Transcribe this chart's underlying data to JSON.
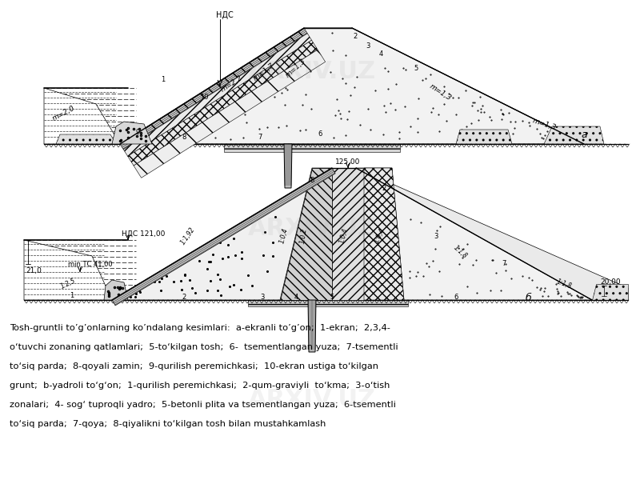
{
  "background_color": "#ffffff",
  "fig_width": 8.0,
  "fig_height": 6.0,
  "dpi": 100,
  "caption": [
    "Tosh-gruntli to’g’onlarning ko’ndalang kesimlari:  a-ekranli to’g’on;  1-ekran;  2,3,4-",
    "o‘tuvchi zonaning qatlamlari;  5-to‘kilgan tosh;  6-  tsementlangan yuza;  7-tsementli",
    "to‘siq parda;  8-qoyali zamin;  9-qurilish peremichkasi;  10-ekran ustiga to‘kilgan",
    "grunt;  b-yadroli to‘g‘on;  1-qurilish peremichkasi;  2-qum-graviyli  to‘kma;  3-o‘tish",
    "zonalari;  4- sog‘ tuproqli yadro;  5-betonli plita va tsementlangan yuza;  6-tsementli",
    "to‘siq parda;  7-qoya;  8-qiyalikni to‘kilgan tosh bilan mustahkamlash"
  ]
}
